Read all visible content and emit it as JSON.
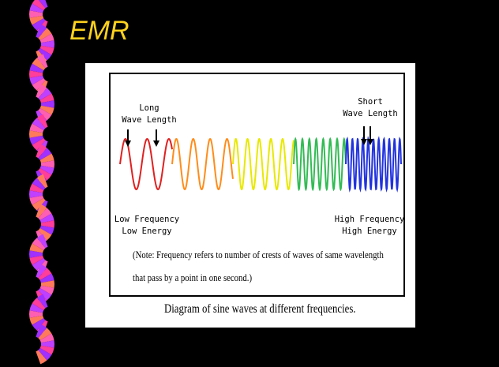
{
  "slide": {
    "title": "EMR",
    "title_color": "#ffd21e",
    "background": "#000000"
  },
  "border": {
    "icon": "fan-chain-icon",
    "colors": [
      "#ff3d9a",
      "#a030ff",
      "#ff7a5c",
      "#ff5fb2",
      "#c040ff"
    ]
  },
  "diagram": {
    "long_label": "Long\nWave Length",
    "short_label": "Short\nWave Length",
    "low_label": "Low Frequency\nLow Energy",
    "high_label": "High Frequency\nHigh Energy",
    "note_line1": "(Note: Frequency refers to number of crests of waves of same wavelength",
    "note_line2": "that pass by a point in one second.)",
    "caption": "Diagram of sine waves at different frequencies.",
    "wave_segments": [
      {
        "color": "#e02020",
        "cycles": 2.4
      },
      {
        "color": "#ff8c1a",
        "cycles": 3.6
      },
      {
        "color": "#e8e800",
        "cycles": 5.2
      },
      {
        "color": "#33bb55",
        "cycles": 7.5
      },
      {
        "color": "#2233dd",
        "cycles": 10.5
      }
    ]
  }
}
